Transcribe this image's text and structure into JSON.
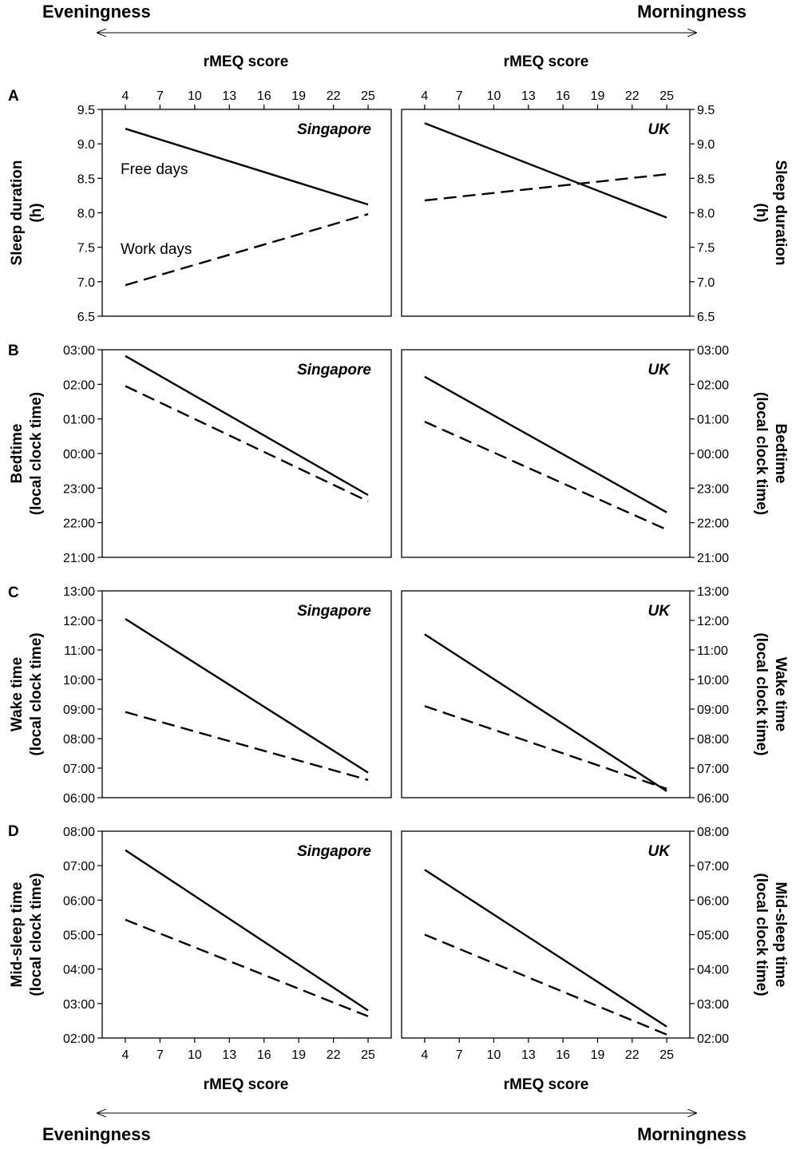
{
  "header": {
    "eveningness_top": "Eveningness",
    "morningness_top": "Morningness",
    "eveningness_bottom": "Eveningness",
    "morningness_bottom": "Morningness"
  },
  "x_axis": {
    "label_top_left": "rMEQ score",
    "label_top_right": "rMEQ score",
    "label_bottom_left": "rMEQ score",
    "label_bottom_right": "rMEQ score",
    "ticks": [
      4,
      7,
      10,
      13,
      16,
      19,
      22,
      25
    ]
  },
  "annotations": {
    "free_days": "Free days",
    "work_days": "Work days"
  },
  "chart_data": [
    {
      "type": "line",
      "panel": "A",
      "country": "Singapore",
      "title": "Singapore",
      "xlabel": "rMEQ score",
      "ylabel": [
        "Sleep duration",
        "(h)"
      ],
      "xlim": [
        2,
        27
      ],
      "ylim": [
        6.5,
        9.5
      ],
      "yticks": [
        "6.5",
        "7.0",
        "7.5",
        "8.0",
        "8.5",
        "9.0",
        "9.5"
      ],
      "series": [
        {
          "name": "Free days",
          "x": [
            4,
            25
          ],
          "values": [
            9.22,
            8.12
          ]
        },
        {
          "name": "Work days",
          "x": [
            4,
            25
          ],
          "values": [
            6.95,
            7.98
          ]
        }
      ]
    },
    {
      "type": "line",
      "panel": "A",
      "country": "UK",
      "title": "UK",
      "xlabel": "rMEQ score",
      "ylabel": [
        "Sleep duration",
        "(h)"
      ],
      "xlim": [
        2,
        27
      ],
      "ylim": [
        6.5,
        9.5
      ],
      "yticks": [
        "6.5",
        "7.0",
        "7.5",
        "8.0",
        "8.5",
        "9.0",
        "9.5"
      ],
      "series": [
        {
          "name": "Free days",
          "x": [
            4,
            25
          ],
          "values": [
            9.3,
            7.93
          ]
        },
        {
          "name": "Work days",
          "x": [
            4,
            25
          ],
          "values": [
            8.18,
            8.56
          ]
        }
      ]
    },
    {
      "type": "line",
      "panel": "B",
      "country": "Singapore",
      "title": "Singapore",
      "xlabel": "rMEQ score",
      "ylabel": [
        "Bedtime",
        "(local clock time)"
      ],
      "xlim": [
        2,
        27
      ],
      "ylim": [
        21,
        27
      ],
      "yticks": [
        "21:00",
        "22:00",
        "23:00",
        "00:00",
        "01:00",
        "02:00",
        "03:00"
      ],
      "series": [
        {
          "name": "Free days",
          "x": [
            4,
            25
          ],
          "values": [
            26.82,
            22.8
          ]
        },
        {
          "name": "Work days",
          "x": [
            4,
            25
          ],
          "values": [
            25.95,
            22.62
          ]
        }
      ]
    },
    {
      "type": "line",
      "panel": "B",
      "country": "UK",
      "title": "UK",
      "xlabel": "rMEQ score",
      "ylabel": [
        "Bedtime",
        "(local clock time)"
      ],
      "xlim": [
        2,
        27
      ],
      "ylim": [
        21,
        27
      ],
      "yticks": [
        "21:00",
        "22:00",
        "23:00",
        "00:00",
        "01:00",
        "02:00",
        "03:00"
      ],
      "series": [
        {
          "name": "Free days",
          "x": [
            4,
            25
          ],
          "values": [
            26.22,
            22.3
          ]
        },
        {
          "name": "Work days",
          "x": [
            4,
            25
          ],
          "values": [
            24.92,
            21.8
          ]
        }
      ]
    },
    {
      "type": "line",
      "panel": "C",
      "country": "Singapore",
      "title": "Singapore",
      "xlabel": "rMEQ score",
      "ylabel": [
        "Wake time",
        "(local clock time)"
      ],
      "xlim": [
        2,
        27
      ],
      "ylim": [
        6,
        13
      ],
      "yticks": [
        "06:00",
        "07:00",
        "08:00",
        "09:00",
        "10:00",
        "11:00",
        "12:00",
        "13:00"
      ],
      "series": [
        {
          "name": "Free days",
          "x": [
            4,
            25
          ],
          "values": [
            12.05,
            6.85
          ]
        },
        {
          "name": "Work days",
          "x": [
            4,
            25
          ],
          "values": [
            8.9,
            6.6
          ]
        }
      ]
    },
    {
      "type": "line",
      "panel": "C",
      "country": "UK",
      "title": "UK",
      "xlabel": "rMEQ score",
      "ylabel": [
        "Wake time",
        "(local clock time)"
      ],
      "xlim": [
        2,
        27
      ],
      "ylim": [
        6,
        13
      ],
      "yticks": [
        "06:00",
        "07:00",
        "08:00",
        "09:00",
        "10:00",
        "11:00",
        "12:00",
        "13:00"
      ],
      "series": [
        {
          "name": "Free days",
          "x": [
            4,
            25
          ],
          "values": [
            11.53,
            6.22
          ]
        },
        {
          "name": "Work days",
          "x": [
            4,
            25
          ],
          "values": [
            9.1,
            6.3
          ]
        }
      ]
    },
    {
      "type": "line",
      "panel": "D",
      "country": "Singapore",
      "title": "Singapore",
      "xlabel": "rMEQ score",
      "ylabel": [
        "Mid-sleep time",
        "(local clock time)"
      ],
      "xlim": [
        2,
        27
      ],
      "ylim": [
        2,
        8
      ],
      "yticks": [
        "02:00",
        "03:00",
        "04:00",
        "05:00",
        "06:00",
        "07:00",
        "08:00"
      ],
      "series": [
        {
          "name": "Free days",
          "x": [
            4,
            25
          ],
          "values": [
            7.45,
            2.8
          ]
        },
        {
          "name": "Work days",
          "x": [
            4,
            25
          ],
          "values": [
            5.43,
            2.63
          ]
        }
      ]
    },
    {
      "type": "line",
      "panel": "D",
      "country": "UK",
      "title": "UK",
      "xlabel": "rMEQ score",
      "ylabel": [
        "Mid-sleep time",
        "(local clock time)"
      ],
      "xlim": [
        2,
        27
      ],
      "ylim": [
        2,
        8
      ],
      "yticks": [
        "02:00",
        "03:00",
        "04:00",
        "05:00",
        "06:00",
        "07:00",
        "08:00"
      ],
      "series": [
        {
          "name": "Free days",
          "x": [
            4,
            25
          ],
          "values": [
            6.88,
            2.33
          ]
        },
        {
          "name": "Work days",
          "x": [
            4,
            25
          ],
          "values": [
            5.0,
            2.1
          ]
        }
      ]
    }
  ]
}
